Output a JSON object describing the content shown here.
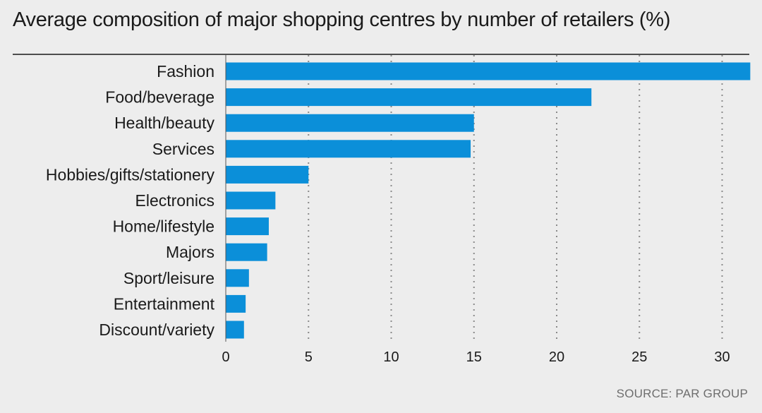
{
  "chart_data": {
    "type": "bar",
    "orientation": "horizontal",
    "title": "Average composition of major shopping centres by number of retailers (%)",
    "categories": [
      "Fashion",
      "Food/beverage",
      "Health/beauty",
      "Services",
      "Hobbies/gifts/stationery",
      "Electronics",
      "Home/lifestyle",
      "Majors",
      "Sport/leisure",
      "Entertainment",
      "Discount/variety"
    ],
    "values": [
      31.7,
      22.1,
      15.0,
      14.8,
      5.0,
      3.0,
      2.6,
      2.5,
      1.4,
      1.2,
      1.1
    ],
    "xlim": [
      0,
      31.7
    ],
    "xticks": [
      0,
      5,
      10,
      15,
      20,
      25,
      30
    ],
    "grid": "vertical dotted",
    "bar_color": "#0b8fd9",
    "source": "SOURCE: PAR GROUP"
  }
}
